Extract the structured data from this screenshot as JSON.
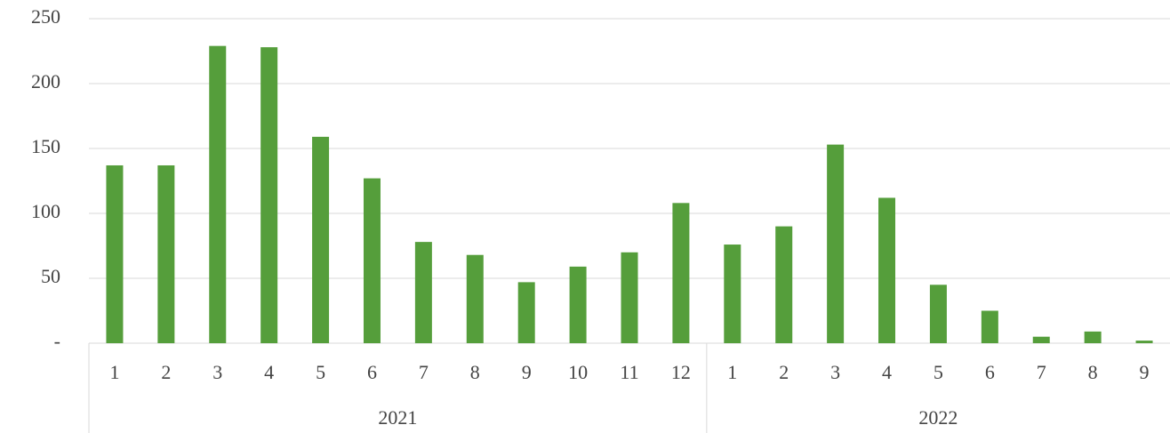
{
  "chart_data": {
    "type": "bar",
    "color": "#559e3b",
    "groups": [
      {
        "name": "2021",
        "categories": [
          "1",
          "2",
          "3",
          "4",
          "5",
          "6",
          "7",
          "8",
          "9",
          "10",
          "11",
          "12"
        ],
        "values": [
          137,
          137,
          229,
          228,
          159,
          127,
          78,
          68,
          47,
          59,
          70,
          108
        ]
      },
      {
        "name": "2022",
        "categories": [
          "1",
          "2",
          "3",
          "4",
          "5",
          "6",
          "7",
          "8",
          "9"
        ],
        "values": [
          76,
          90,
          153,
          112,
          45,
          25,
          5,
          9,
          2
        ]
      }
    ],
    "ylim": [
      0,
      250
    ],
    "yticks": [
      {
        "value": 0,
        "label": "-"
      },
      50,
      100,
      150,
      200,
      250
    ],
    "grid": true
  }
}
